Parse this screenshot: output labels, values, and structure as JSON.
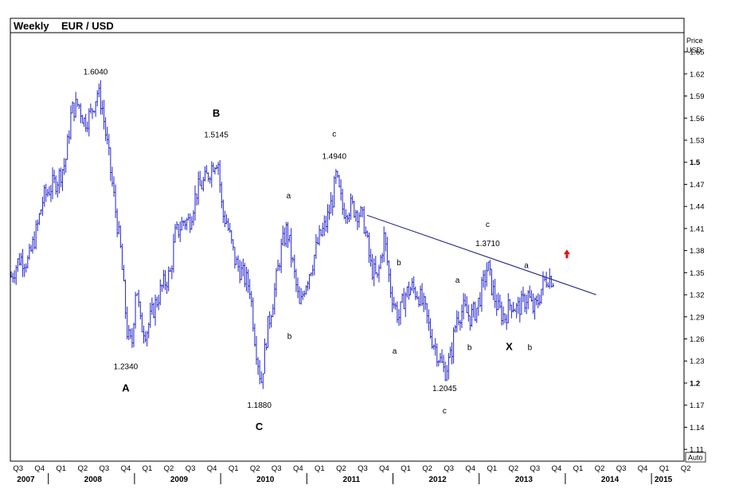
{
  "header": {
    "timeframe": "Weekly",
    "instrument": "EUR / USD"
  },
  "axis": {
    "unit_line1": "Price",
    "unit_line2": "USD",
    "auto_label": "Auto"
  },
  "chart_data": {
    "type": "line",
    "title": "Weekly EUR / USD",
    "ylim": [
      1.095,
      1.675
    ],
    "y_ticks": [
      "1.65",
      "1.62",
      "1.59",
      "1.56",
      "1.53",
      "1.5",
      "1.47",
      "1.44",
      "1.41",
      "1.38",
      "1.35",
      "1.32",
      "1.29",
      "1.26",
      "1.23",
      "1.2",
      "1.17",
      "1.14",
      "1.11"
    ],
    "bold_ticks": [
      "1.5",
      "1.2"
    ],
    "xlim": [
      2007.55,
      2015.35
    ],
    "quarter_labels": [
      {
        "t": 2007.63,
        "q": "Q3"
      },
      {
        "t": 2007.88,
        "q": "Q4"
      },
      {
        "t": 2008.13,
        "q": "Q1"
      },
      {
        "t": 2008.38,
        "q": "Q2"
      },
      {
        "t": 2008.63,
        "q": "Q3"
      },
      {
        "t": 2008.88,
        "q": "Q4"
      },
      {
        "t": 2009.13,
        "q": "Q1"
      },
      {
        "t": 2009.38,
        "q": "Q2"
      },
      {
        "t": 2009.63,
        "q": "Q3"
      },
      {
        "t": 2009.88,
        "q": "Q4"
      },
      {
        "t": 2010.13,
        "q": "Q1"
      },
      {
        "t": 2010.38,
        "q": "Q2"
      },
      {
        "t": 2010.63,
        "q": "Q3"
      },
      {
        "t": 2010.88,
        "q": "Q4"
      },
      {
        "t": 2011.13,
        "q": "Q1"
      },
      {
        "t": 2011.38,
        "q": "Q2"
      },
      {
        "t": 2011.63,
        "q": "Q3"
      },
      {
        "t": 2011.88,
        "q": "Q4"
      },
      {
        "t": 2012.13,
        "q": "Q1"
      },
      {
        "t": 2012.38,
        "q": "Q2"
      },
      {
        "t": 2012.63,
        "q": "Q3"
      },
      {
        "t": 2012.88,
        "q": "Q4"
      },
      {
        "t": 2013.13,
        "q": "Q1"
      },
      {
        "t": 2013.38,
        "q": "Q2"
      },
      {
        "t": 2013.63,
        "q": "Q3"
      },
      {
        "t": 2013.88,
        "q": "Q4"
      },
      {
        "t": 2014.13,
        "q": "Q1"
      },
      {
        "t": 2014.38,
        "q": "Q2"
      },
      {
        "t": 2014.63,
        "q": "Q3"
      },
      {
        "t": 2014.88,
        "q": "Q4"
      },
      {
        "t": 2015.13,
        "q": "Q1"
      },
      {
        "t": 2015.38,
        "q": "Q2"
      }
    ],
    "year_labels": [
      {
        "t": 2007.72,
        "label": "2007"
      },
      {
        "t": 2008.5,
        "label": "2008"
      },
      {
        "t": 2009.5,
        "label": "2009"
      },
      {
        "t": 2010.5,
        "label": "2010"
      },
      {
        "t": 2011.5,
        "label": "2011"
      },
      {
        "t": 2012.5,
        "label": "2012"
      },
      {
        "t": 2013.5,
        "label": "2013"
      },
      {
        "t": 2014.5,
        "label": "2014"
      },
      {
        "t": 2015.12,
        "label": "2015"
      }
    ],
    "series": [
      {
        "color": "#2222cc",
        "points": [
          [
            2007.55,
            1.345
          ],
          [
            2007.65,
            1.37
          ],
          [
            2007.75,
            1.365
          ],
          [
            2007.85,
            1.41
          ],
          [
            2007.92,
            1.45
          ],
          [
            2008.0,
            1.465
          ],
          [
            2008.08,
            1.475
          ],
          [
            2008.18,
            1.5
          ],
          [
            2008.25,
            1.57
          ],
          [
            2008.33,
            1.58
          ],
          [
            2008.4,
            1.555
          ],
          [
            2008.47,
            1.565
          ],
          [
            2008.55,
            1.595
          ],
          [
            2008.6,
            1.58
          ],
          [
            2008.68,
            1.51
          ],
          [
            2008.75,
            1.445
          ],
          [
            2008.82,
            1.38
          ],
          [
            2008.9,
            1.265
          ],
          [
            2008.95,
            1.25
          ],
          [
            2009.0,
            1.34
          ],
          [
            2009.05,
            1.28
          ],
          [
            2009.12,
            1.27
          ],
          [
            2009.2,
            1.3
          ],
          [
            2009.3,
            1.33
          ],
          [
            2009.4,
            1.35
          ],
          [
            2009.45,
            1.4
          ],
          [
            2009.55,
            1.42
          ],
          [
            2009.62,
            1.42
          ],
          [
            2009.7,
            1.46
          ],
          [
            2009.8,
            1.475
          ],
          [
            2009.9,
            1.5
          ],
          [
            2009.95,
            1.505
          ],
          [
            2010.0,
            1.43
          ],
          [
            2010.05,
            1.42
          ],
          [
            2010.15,
            1.365
          ],
          [
            2010.25,
            1.345
          ],
          [
            2010.32,
            1.33
          ],
          [
            2010.38,
            1.26
          ],
          [
            2010.45,
            1.2
          ],
          [
            2010.52,
            1.27
          ],
          [
            2010.6,
            1.32
          ],
          [
            2010.68,
            1.38
          ],
          [
            2010.75,
            1.41
          ],
          [
            2010.82,
            1.36
          ],
          [
            2010.9,
            1.3
          ],
          [
            2010.95,
            1.33
          ],
          [
            2011.05,
            1.365
          ],
          [
            2011.12,
            1.395
          ],
          [
            2011.2,
            1.415
          ],
          [
            2011.28,
            1.45
          ],
          [
            2011.32,
            1.48
          ],
          [
            2011.4,
            1.435
          ],
          [
            2011.5,
            1.44
          ],
          [
            2011.6,
            1.43
          ],
          [
            2011.65,
            1.415
          ],
          [
            2011.72,
            1.36
          ],
          [
            2011.8,
            1.34
          ],
          [
            2011.88,
            1.4
          ],
          [
            2011.95,
            1.33
          ],
          [
            2012.0,
            1.305
          ],
          [
            2012.05,
            1.29
          ],
          [
            2012.12,
            1.32
          ],
          [
            2012.2,
            1.33
          ],
          [
            2012.28,
            1.32
          ],
          [
            2012.35,
            1.3
          ],
          [
            2012.42,
            1.265
          ],
          [
            2012.5,
            1.24
          ],
          [
            2012.58,
            1.215
          ],
          [
            2012.65,
            1.235
          ],
          [
            2012.72,
            1.29
          ],
          [
            2012.8,
            1.3
          ],
          [
            2012.88,
            1.29
          ],
          [
            2012.95,
            1.3
          ],
          [
            2013.02,
            1.33
          ],
          [
            2013.08,
            1.36
          ],
          [
            2013.12,
            1.335
          ],
          [
            2013.2,
            1.3
          ],
          [
            2013.28,
            1.29
          ],
          [
            2013.35,
            1.31
          ],
          [
            2013.42,
            1.3
          ],
          [
            2013.5,
            1.31
          ],
          [
            2013.55,
            1.32
          ],
          [
            2013.6,
            1.3
          ],
          [
            2013.65,
            1.305
          ],
          [
            2013.72,
            1.335
          ],
          [
            2013.78,
            1.345
          ],
          [
            2013.85,
            1.34
          ]
        ]
      }
    ],
    "trendline": [
      [
        2011.68,
        1.428
      ],
      [
        2014.34,
        1.32
      ]
    ],
    "annotations": [
      {
        "t": 2008.53,
        "p": 1.604,
        "dy": -14,
        "text": "1.6040",
        "style": "ann"
      },
      {
        "t": 2008.88,
        "p": 1.234,
        "dy": 14,
        "text": "1.2340",
        "style": "ann"
      },
      {
        "t": 2008.88,
        "p": 1.234,
        "dy": 42,
        "text": "A",
        "style": "wave"
      },
      {
        "t": 2009.93,
        "p": 1.5145,
        "dy": -18,
        "text": "1.5145",
        "style": "ann"
      },
      {
        "t": 2009.93,
        "p": 1.5145,
        "dy": -44,
        "text": "B",
        "style": "wave"
      },
      {
        "t": 2010.43,
        "p": 1.188,
        "dy": 20,
        "text": "1.1880",
        "style": "ann"
      },
      {
        "t": 2010.43,
        "p": 1.188,
        "dy": 48,
        "text": "C",
        "style": "wave"
      },
      {
        "t": 2011.3,
        "p": 1.494,
        "dy": -10,
        "text": "1.4940",
        "style": "ann"
      },
      {
        "t": 2011.3,
        "p": 1.494,
        "dy": -38,
        "text": "c",
        "style": "ann"
      },
      {
        "t": 2010.77,
        "p": 1.44,
        "dy": -10,
        "text": "a",
        "style": "ann"
      },
      {
        "t": 2010.78,
        "p": 1.26,
        "dy": 0,
        "text": "b",
        "style": "ann"
      },
      {
        "t": 2012.05,
        "p": 1.36,
        "dy": 0,
        "text": "b",
        "style": "ann"
      },
      {
        "t": 2012.0,
        "p": 1.24,
        "dy": 0,
        "text": "a",
        "style": "ann"
      },
      {
        "t": 2012.58,
        "p": 1.2045,
        "dy": 14,
        "text": "1.2045",
        "style": "ann"
      },
      {
        "t": 2012.58,
        "p": 1.2045,
        "dy": 42,
        "text": "c",
        "style": "ann"
      },
      {
        "t": 2012.73,
        "p": 1.33,
        "dy": -6,
        "text": "a",
        "style": "ann"
      },
      {
        "t": 2012.87,
        "p": 1.245,
        "dy": 0,
        "text": "b",
        "style": "ann"
      },
      {
        "t": 2013.08,
        "p": 1.371,
        "dy": -14,
        "text": "1.3710",
        "style": "ann"
      },
      {
        "t": 2013.08,
        "p": 1.371,
        "dy": -38,
        "text": "c",
        "style": "ann"
      },
      {
        "t": 2013.33,
        "p": 1.245,
        "dy": 0,
        "text": "X",
        "style": "wave"
      },
      {
        "t": 2013.53,
        "p": 1.35,
        "dy": -6,
        "text": "a",
        "style": "ann"
      },
      {
        "t": 2013.57,
        "p": 1.245,
        "dy": 0,
        "text": "b",
        "style": "ann"
      }
    ],
    "arrow": {
      "t": 2014.0,
      "p": 1.375,
      "color": "#e01010",
      "direction": "up"
    }
  }
}
